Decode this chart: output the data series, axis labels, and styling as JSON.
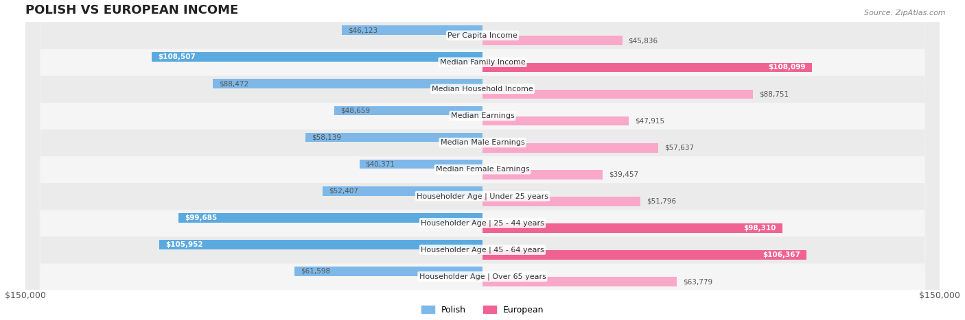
{
  "title": "POLISH VS EUROPEAN INCOME",
  "source": "Source: ZipAtlas.com",
  "categories": [
    "Per Capita Income",
    "Median Family Income",
    "Median Household Income",
    "Median Earnings",
    "Median Male Earnings",
    "Median Female Earnings",
    "Householder Age | Under 25 years",
    "Householder Age | 25 - 44 years",
    "Householder Age | 45 - 64 years",
    "Householder Age | Over 65 years"
  ],
  "polish_values": [
    46123,
    108507,
    88472,
    48659,
    58139,
    40371,
    52407,
    99685,
    105952,
    61598
  ],
  "european_values": [
    45836,
    108099,
    88751,
    47915,
    57637,
    39457,
    51796,
    98310,
    106367,
    63779
  ],
  "polish_color_normal": "#7eb8e8",
  "polish_color_highlight": "#5aaae0",
  "european_color_normal": "#f9a8c9",
  "european_color_highlight": "#f06292",
  "highlight_threshold": 90000,
  "max_value": 150000,
  "bar_height": 0.35,
  "bg_color": "#f5f5f5",
  "row_bg_light": "#fafafa",
  "row_bg_dark": "#f0f0f0"
}
